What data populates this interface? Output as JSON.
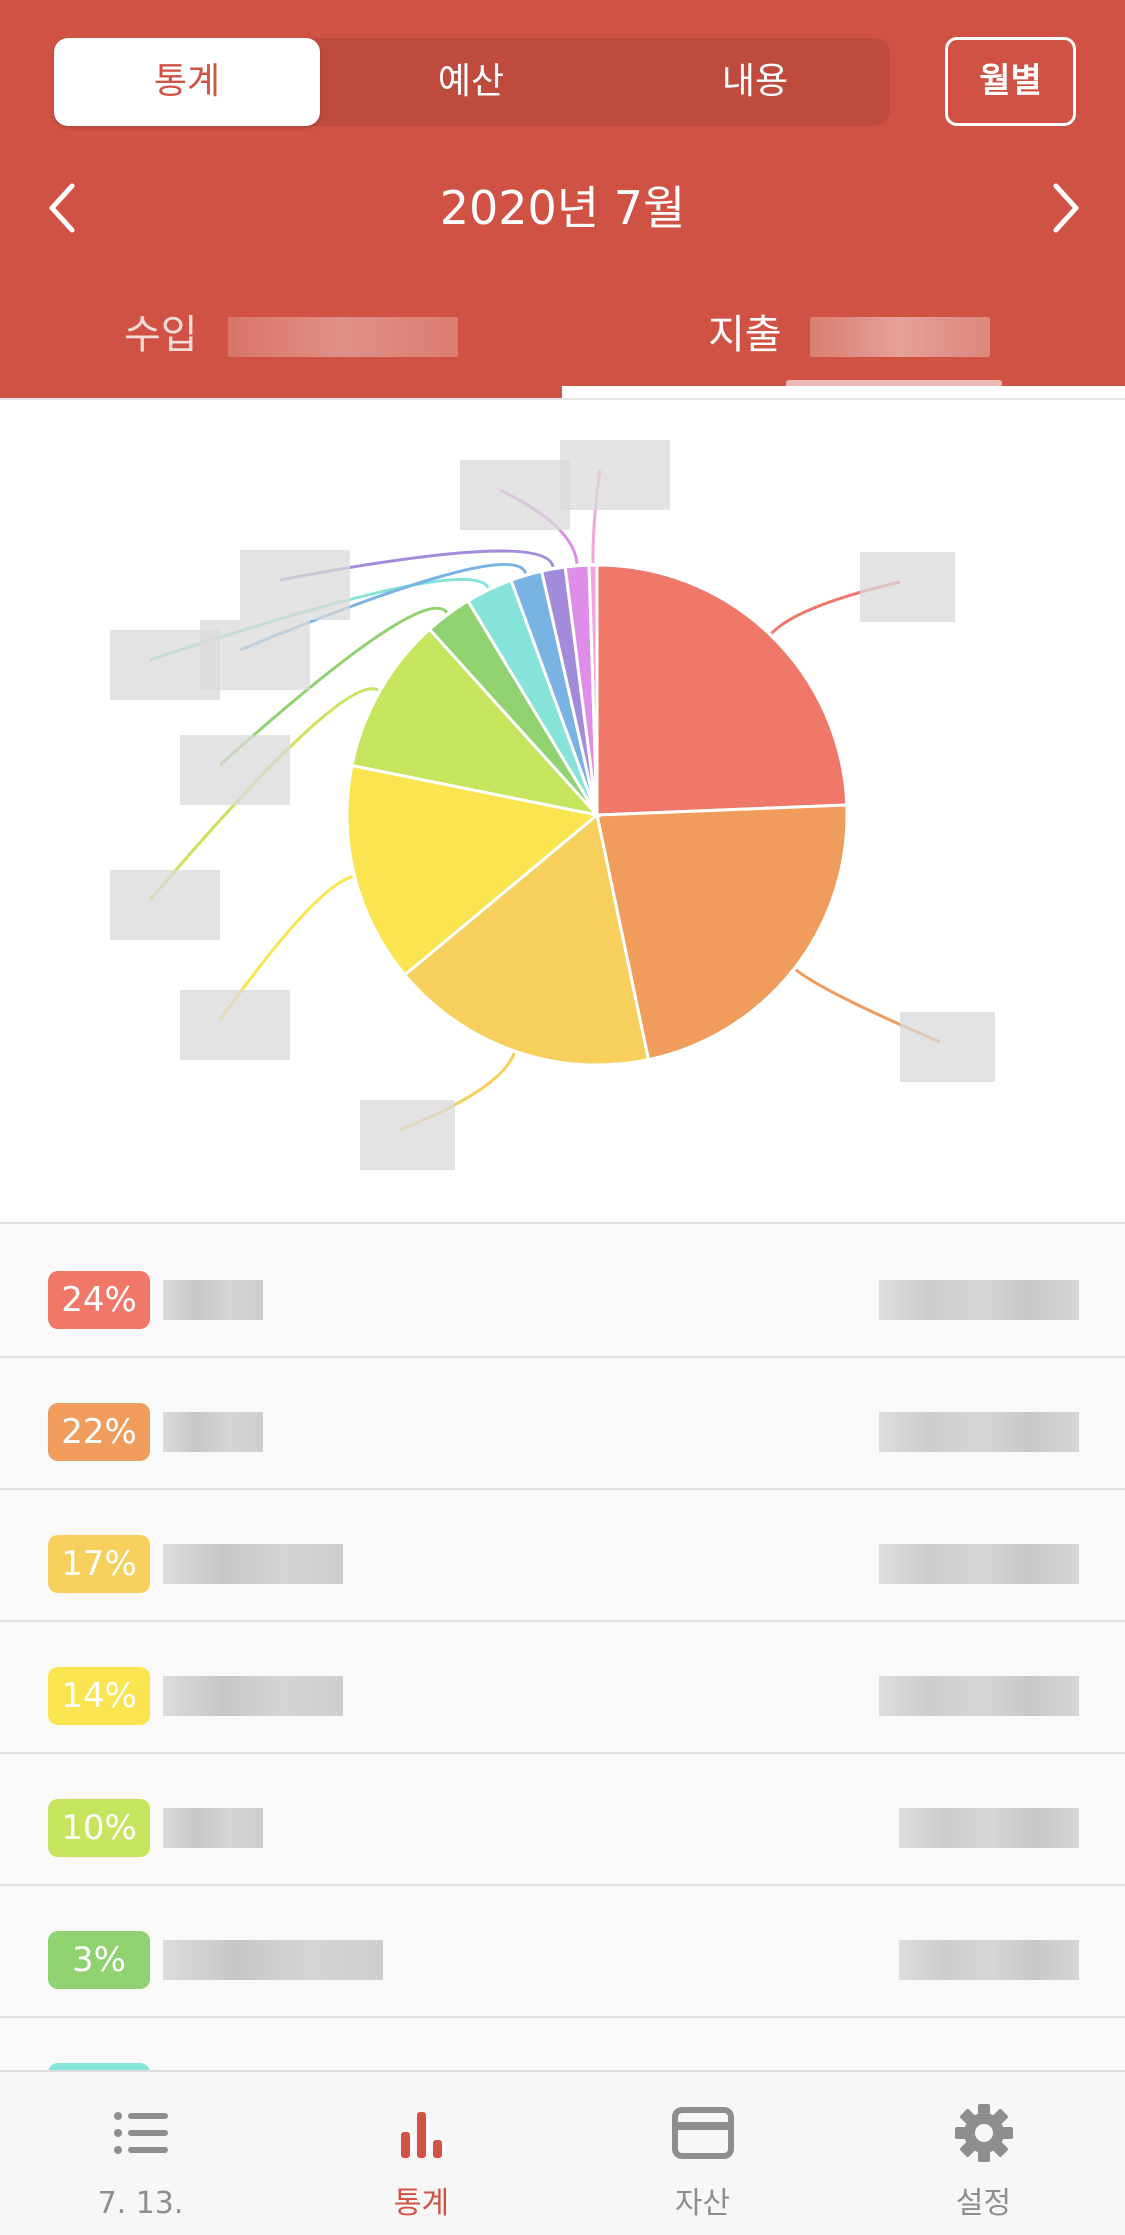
{
  "header": {
    "segments": [
      "통계",
      "예산",
      "내용"
    ],
    "active_segment": "통계",
    "monthly_button": "월별",
    "month_title": "2020년 7월",
    "tabs": {
      "income": "수입",
      "expense": "지출"
    },
    "active_tab": "지출",
    "color": "#CF5244"
  },
  "chart_data": {
    "type": "pie",
    "slices": [
      {
        "percent": 24,
        "color": "#EF7869"
      },
      {
        "percent": 22,
        "color": "#F09C5C"
      },
      {
        "percent": 17,
        "color": "#F6CF5C"
      },
      {
        "percent": 14,
        "color": "#FAE44F"
      },
      {
        "percent": 10,
        "color": "#C6E45D"
      },
      {
        "percent": 3,
        "color": "#8FD26F"
      },
      {
        "percent": 3,
        "color": "#86E3DA"
      },
      {
        "percent": 2,
        "color": "#79B3E3"
      },
      {
        "percent": 1.5,
        "color": "#A18BDA"
      },
      {
        "percent": 1.5,
        "color": "#DE8EE8"
      },
      {
        "percent": 0.5,
        "color": "#F3A6DA"
      }
    ]
  },
  "list": [
    {
      "percent_label": "24%",
      "color": "#EF7869"
    },
    {
      "percent_label": "22%",
      "color": "#F09C5C"
    },
    {
      "percent_label": "17%",
      "color": "#F6CF5C"
    },
    {
      "percent_label": "14%",
      "color": "#FAE44F"
    },
    {
      "percent_label": "10%",
      "color": "#C6E45D"
    },
    {
      "percent_label": "3%",
      "color": "#8FD26F"
    },
    {
      "percent_label": "",
      "color": "#86E3DA"
    }
  ],
  "bottom_nav": [
    {
      "label": "7. 13.",
      "icon": "list-icon"
    },
    {
      "label": "통계",
      "icon": "bar-chart-icon",
      "active": true
    },
    {
      "label": "자산",
      "icon": "card-icon"
    },
    {
      "label": "설정",
      "icon": "gear-icon"
    }
  ]
}
